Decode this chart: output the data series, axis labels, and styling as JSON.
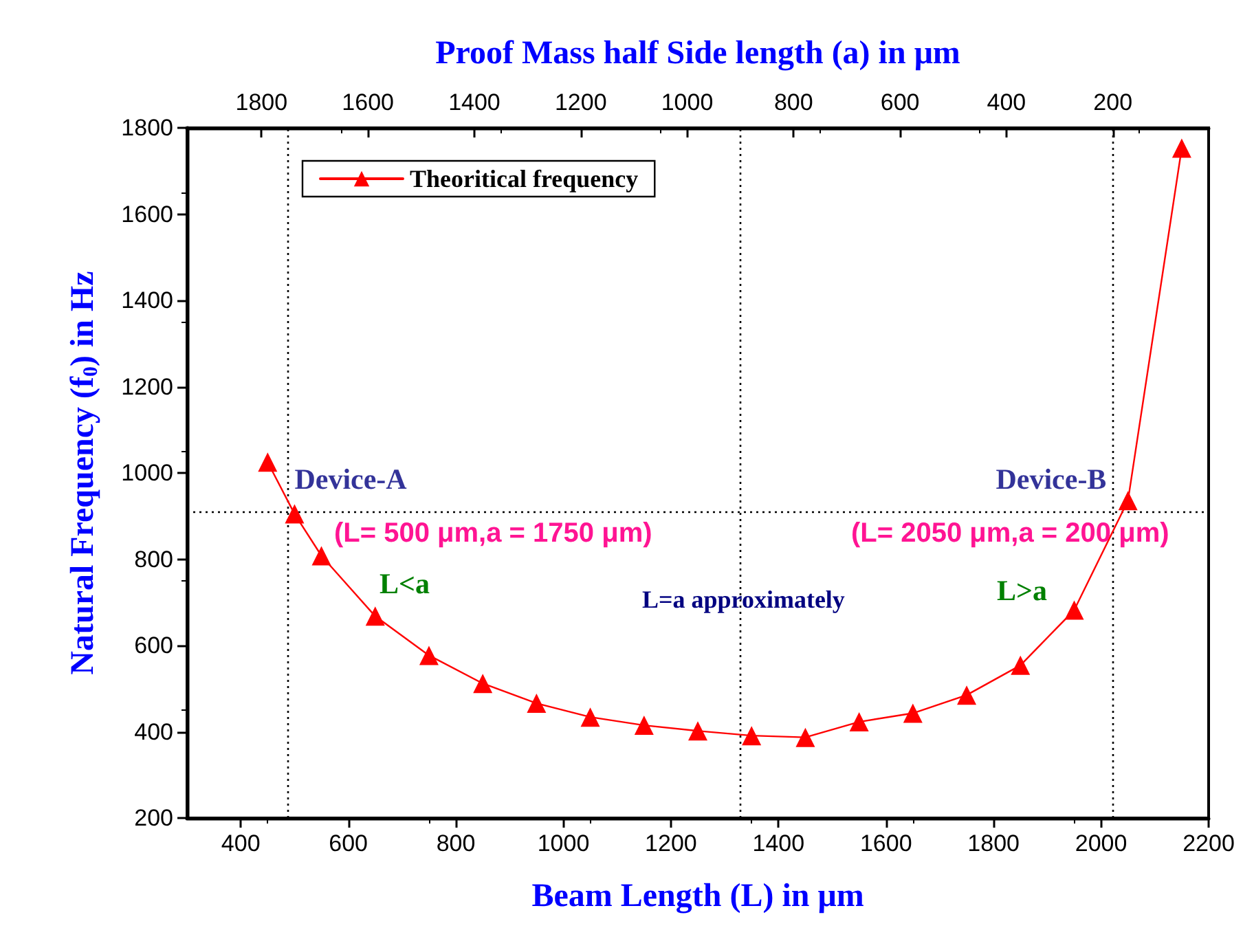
{
  "chart_data": {
    "type": "line",
    "xlabel": "Beam Length (L) in μm",
    "ylabel": "Natural Frequency (f$_{0}$) in Hz",
    "x2label": "Proof Mass half Side length (a) in μm",
    "x": [
      450,
      500,
      550,
      650,
      750,
      850,
      950,
      1050,
      1150,
      1250,
      1350,
      1450,
      1550,
      1650,
      1750,
      1850,
      1950,
      2050,
      2150
    ],
    "series": [
      {
        "name": "Theoritical frequency",
        "color": "#ff0000",
        "values": [
          1025,
          905,
          808,
          668,
          577,
          512,
          466,
          434,
          415,
          402,
          391,
          387,
          423,
          443,
          485,
          554,
          682,
          936,
          1753
        ]
      }
    ],
    "xlim": [
      300,
      2200
    ],
    "xticks": [
      400,
      600,
      800,
      1000,
      1200,
      1400,
      1600,
      1800,
      2000,
      2200
    ],
    "ylim": [
      200,
      1800
    ],
    "yticks": [
      200,
      400,
      600,
      800,
      1000,
      1200,
      1400,
      1600,
      1800
    ],
    "x2lim": [
      1940,
      20
    ],
    "x2ticks": [
      1800,
      1600,
      1400,
      1200,
      1000,
      800,
      600,
      400,
      200
    ],
    "ref_lines": [
      {
        "axis": "x2",
        "value": 1750,
        "line_style": "dotted",
        "color": "#000000"
      },
      {
        "axis": "x2",
        "value": 900,
        "line_style": "dotted",
        "color": "#000000"
      },
      {
        "axis": "x2",
        "value": 200,
        "line_style": "dotted",
        "color": "#000000"
      },
      {
        "axis": "y",
        "value": 910,
        "line_style": "dotted",
        "color": "#000000"
      }
    ],
    "annotations": [
      {
        "text": "Device-A",
        "x": 500,
        "y": 985
      },
      "(L= 500 μm,a = 1750 μm)",
      "L<a",
      "L=a approximately",
      {
        "text": "Device-B",
        "x": 2010,
        "y": 985
      },
      "(L= 2050 μm,a = 200 μm)",
      "L>a"
    ],
    "grid": false,
    "legend": "top left",
    "marker": "triangle",
    "line_style": "solid"
  }
}
